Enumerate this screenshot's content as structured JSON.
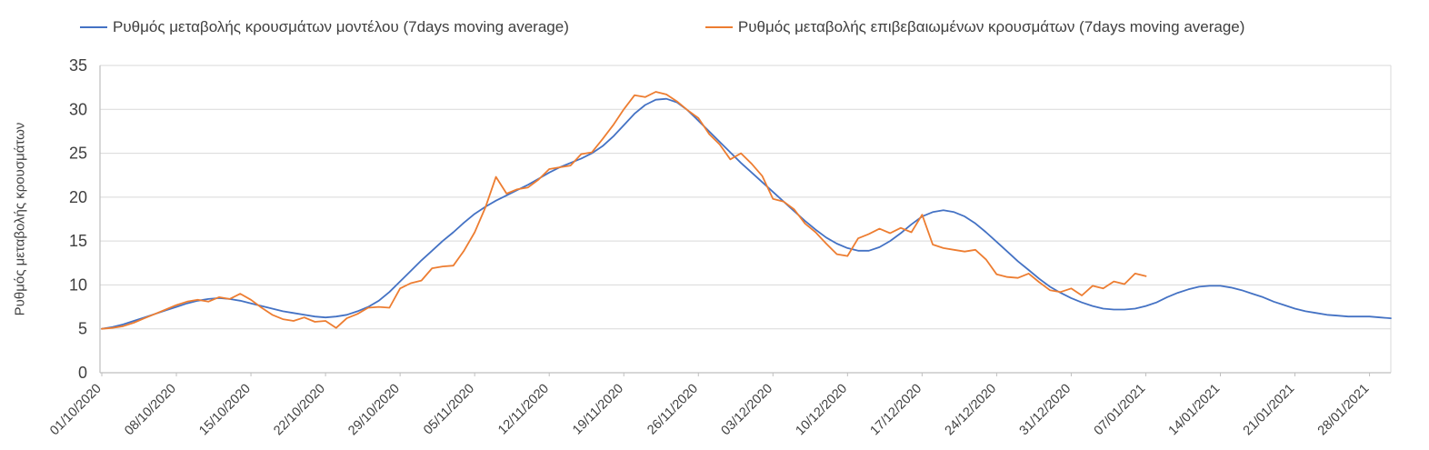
{
  "chart_data": {
    "type": "line",
    "title": "",
    "ylabel": "Ρυθμός μεταβολής κρουσμάτων",
    "ylim": [
      0,
      35
    ],
    "yticks": [
      0,
      5,
      10,
      15,
      20,
      25,
      30,
      35
    ],
    "grid": "horizontal",
    "legend_position": "top",
    "axis_color": "#bfbfbf",
    "gridline_color": "#d9d9d9",
    "text_color": "#404040",
    "x_tick_labels": [
      "01/10/2020",
      "08/10/2020",
      "15/10/2020",
      "22/10/2020",
      "29/10/2020",
      "05/11/2020",
      "12/11/2020",
      "19/11/2020",
      "26/11/2020",
      "03/12/2020",
      "10/12/2020",
      "17/12/2020",
      "24/12/2020",
      "31/12/2020",
      "07/01/2021",
      "14/01/2021",
      "21/01/2021",
      "28/01/2021"
    ],
    "x_tick_day_offsets": [
      0,
      7,
      14,
      21,
      28,
      35,
      42,
      49,
      56,
      63,
      70,
      77,
      84,
      91,
      98,
      105,
      112,
      119
    ],
    "x_total_days": 121,
    "series": [
      {
        "name": "Ρυθμός μεταβολής κρουσμάτων μοντέλου (7days moving average)",
        "color": "#4472C4",
        "start_day": 0,
        "values": [
          5.0,
          5.2,
          5.5,
          5.9,
          6.3,
          6.7,
          7.1,
          7.5,
          7.9,
          8.2,
          8.4,
          8.5,
          8.4,
          8.2,
          7.9,
          7.6,
          7.3,
          7.0,
          6.8,
          6.6,
          6.4,
          6.3,
          6.4,
          6.6,
          7.0,
          7.5,
          8.2,
          9.2,
          10.4,
          11.6,
          12.8,
          13.9,
          15.0,
          16.0,
          17.1,
          18.1,
          18.9,
          19.6,
          20.2,
          20.8,
          21.4,
          22.1,
          22.8,
          23.4,
          23.9,
          24.4,
          25.0,
          25.8,
          26.9,
          28.2,
          29.5,
          30.5,
          31.1,
          31.2,
          30.8,
          29.9,
          28.7,
          27.5,
          26.3,
          25.1,
          23.9,
          22.8,
          21.7,
          20.6,
          19.5,
          18.4,
          17.3,
          16.3,
          15.4,
          14.7,
          14.2,
          13.9,
          13.9,
          14.3,
          15.0,
          15.9,
          16.9,
          17.8,
          18.3,
          18.5,
          18.3,
          17.8,
          17.0,
          16.0,
          14.9,
          13.8,
          12.7,
          11.7,
          10.7,
          9.8,
          9.1,
          8.5,
          8.0,
          7.6,
          7.3,
          7.2,
          7.2,
          7.3,
          7.6,
          8.0,
          8.6,
          9.1,
          9.5,
          9.8,
          9.9,
          9.9,
          9.7,
          9.4,
          9.0,
          8.6,
          8.1,
          7.7,
          7.3,
          7.0,
          6.8,
          6.6,
          6.5,
          6.4,
          6.4,
          6.4,
          6.3,
          6.2
        ]
      },
      {
        "name": "Ρυθμός μεταβολής επιβεβαιωμένων κρουσμάτων (7days moving average)",
        "color": "#ED7D31",
        "start_day": 0,
        "values": [
          5.0,
          5.1,
          5.3,
          5.7,
          6.2,
          6.7,
          7.2,
          7.7,
          8.1,
          8.3,
          8.1,
          8.6,
          8.4,
          9.0,
          8.3,
          7.4,
          6.6,
          6.1,
          5.9,
          6.3,
          5.8,
          5.9,
          5.1,
          6.2,
          6.7,
          7.4,
          7.5,
          7.4,
          9.6,
          10.2,
          10.5,
          11.9,
          12.1,
          12.2,
          13.9,
          16.0,
          18.8,
          22.3,
          20.4,
          20.9,
          21.1,
          22.0,
          23.2,
          23.4,
          23.6,
          24.9,
          25.1,
          26.6,
          28.2,
          30.0,
          31.6,
          31.4,
          32.0,
          31.7,
          30.9,
          29.9,
          29.0,
          27.2,
          26.0,
          24.3,
          25.0,
          23.8,
          22.4,
          19.8,
          19.5,
          18.6,
          17.0,
          16.0,
          14.7,
          13.5,
          13.3,
          15.3,
          15.8,
          16.4,
          15.9,
          16.5,
          16.0,
          18.0,
          14.6,
          14.2,
          14.0,
          13.8,
          14.0,
          12.9,
          11.2,
          10.9,
          10.8,
          11.3,
          10.3,
          9.4,
          9.2,
          9.6,
          8.8,
          9.9,
          9.6,
          10.4,
          10.1,
          11.3,
          11.0
        ]
      }
    ]
  }
}
